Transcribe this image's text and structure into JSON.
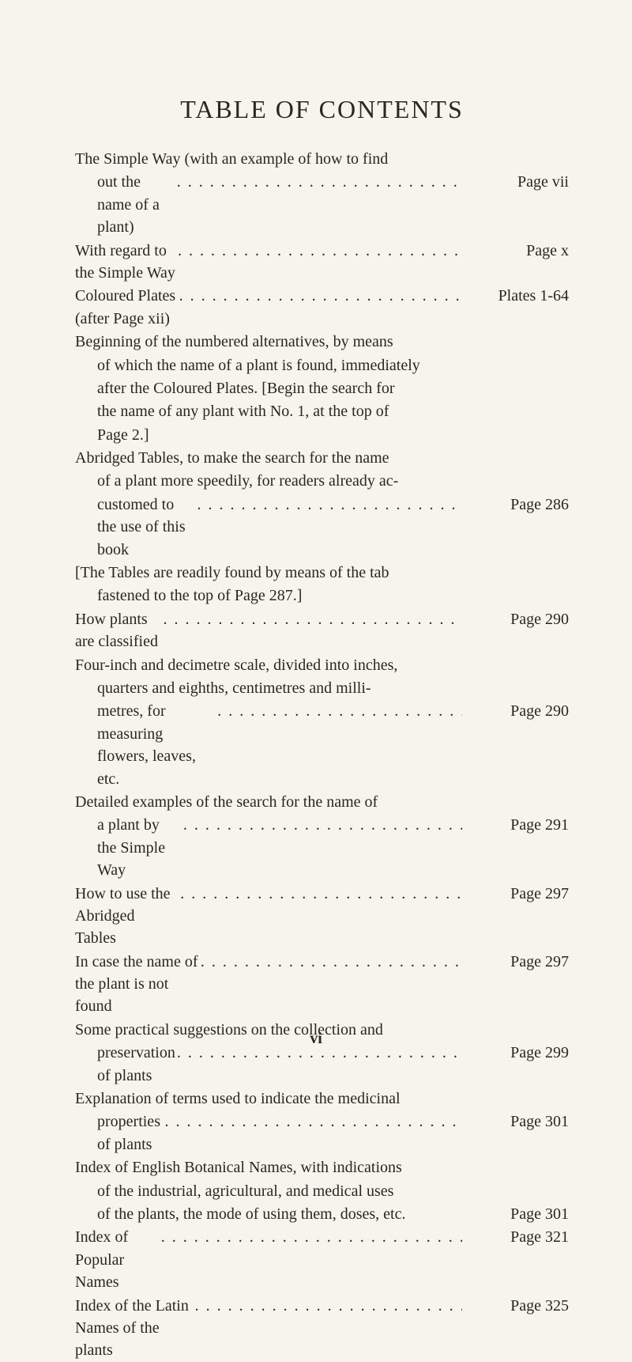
{
  "title": "TABLE OF CONTENTS",
  "page_number_footer": "vi",
  "colors": {
    "background": "#f7f4ed",
    "text": "#2a2620"
  },
  "typography": {
    "title_fontsize": 32,
    "body_fontsize": 20,
    "font_family": "Times New Roman serif"
  },
  "entries": [
    {
      "lines": [
        "The Simple Way (with an example of how to find"
      ],
      "last_line": "out the name of a plant)",
      "page": "Page vii",
      "indent_last": true,
      "pre_mark": "˚"
    },
    {
      "lines": [],
      "last_line": "With regard to the Simple Way",
      "page": "Page x"
    },
    {
      "lines": [],
      "last_line": "Coloured Plates (after Page xii)",
      "page": "Plates 1-64"
    },
    {
      "lines": [
        "Beginning of the numbered alternatives, by means",
        "of which the name of a plant is found, immediately",
        "after the Coloured Plates.  [Begin the search for",
        "the name of any plant with No. 1, at the top of",
        "Page 2.]"
      ],
      "last_line": "",
      "page": "",
      "no_pageref": true,
      "indent_after_first": true
    },
    {
      "lines": [
        "Abridged Tables, to make the search for the name",
        "of a plant more speedily, for readers already ac-"
      ],
      "last_line": "customed to the use of this book",
      "page": "Page 286",
      "indent_after_first": true,
      "indent_last": true
    },
    {
      "lines": [
        "[The Tables are readily found by means of the tab",
        "fastened to the top of Page 287.]"
      ],
      "last_line": "",
      "page": "",
      "no_pageref": true,
      "indent_after_first": true
    },
    {
      "lines": [],
      "last_line": "How plants are classified",
      "page": "Page 290"
    },
    {
      "lines": [
        "Four-inch and decimetre scale, divided into inches,",
        "quarters and eighths, centimetres and milli-"
      ],
      "last_line": "metres, for measuring flowers, leaves, etc.",
      "page": "Page 290",
      "indent_after_first": true,
      "indent_last": true
    },
    {
      "lines": [
        "Detailed examples of the search for the name of"
      ],
      "last_line": "a plant by the Simple Way",
      "page": "Page 291",
      "indent_last": true
    },
    {
      "lines": [],
      "last_line": "How to use the Abridged Tables",
      "page": "Page 297"
    },
    {
      "lines": [],
      "last_line": "In case the name of the plant is not found",
      "page": "Page 297"
    },
    {
      "lines": [
        "Some practical suggestions on the collection and"
      ],
      "last_line": "preservation of plants",
      "page": "Page 299",
      "indent_last": true
    },
    {
      "lines": [
        "Explanation of terms used to indicate the medicinal"
      ],
      "last_line": "properties of plants",
      "page": "Page 301",
      "indent_last": true
    },
    {
      "lines": [
        "Index of English Botanical Names, with indications",
        "of the industrial, agricultural, and medical uses"
      ],
      "last_line": "of the plants, the mode of using them, doses, etc.",
      "page": "Page 301",
      "indent_after_first": true,
      "indent_last": true,
      "no_dots": true
    },
    {
      "lines": [],
      "last_line": "Index of Popular Names",
      "page": "Page 321"
    },
    {
      "lines": [],
      "last_line": "Index of the Latin Names of the plants",
      "page": "Page 325"
    }
  ]
}
